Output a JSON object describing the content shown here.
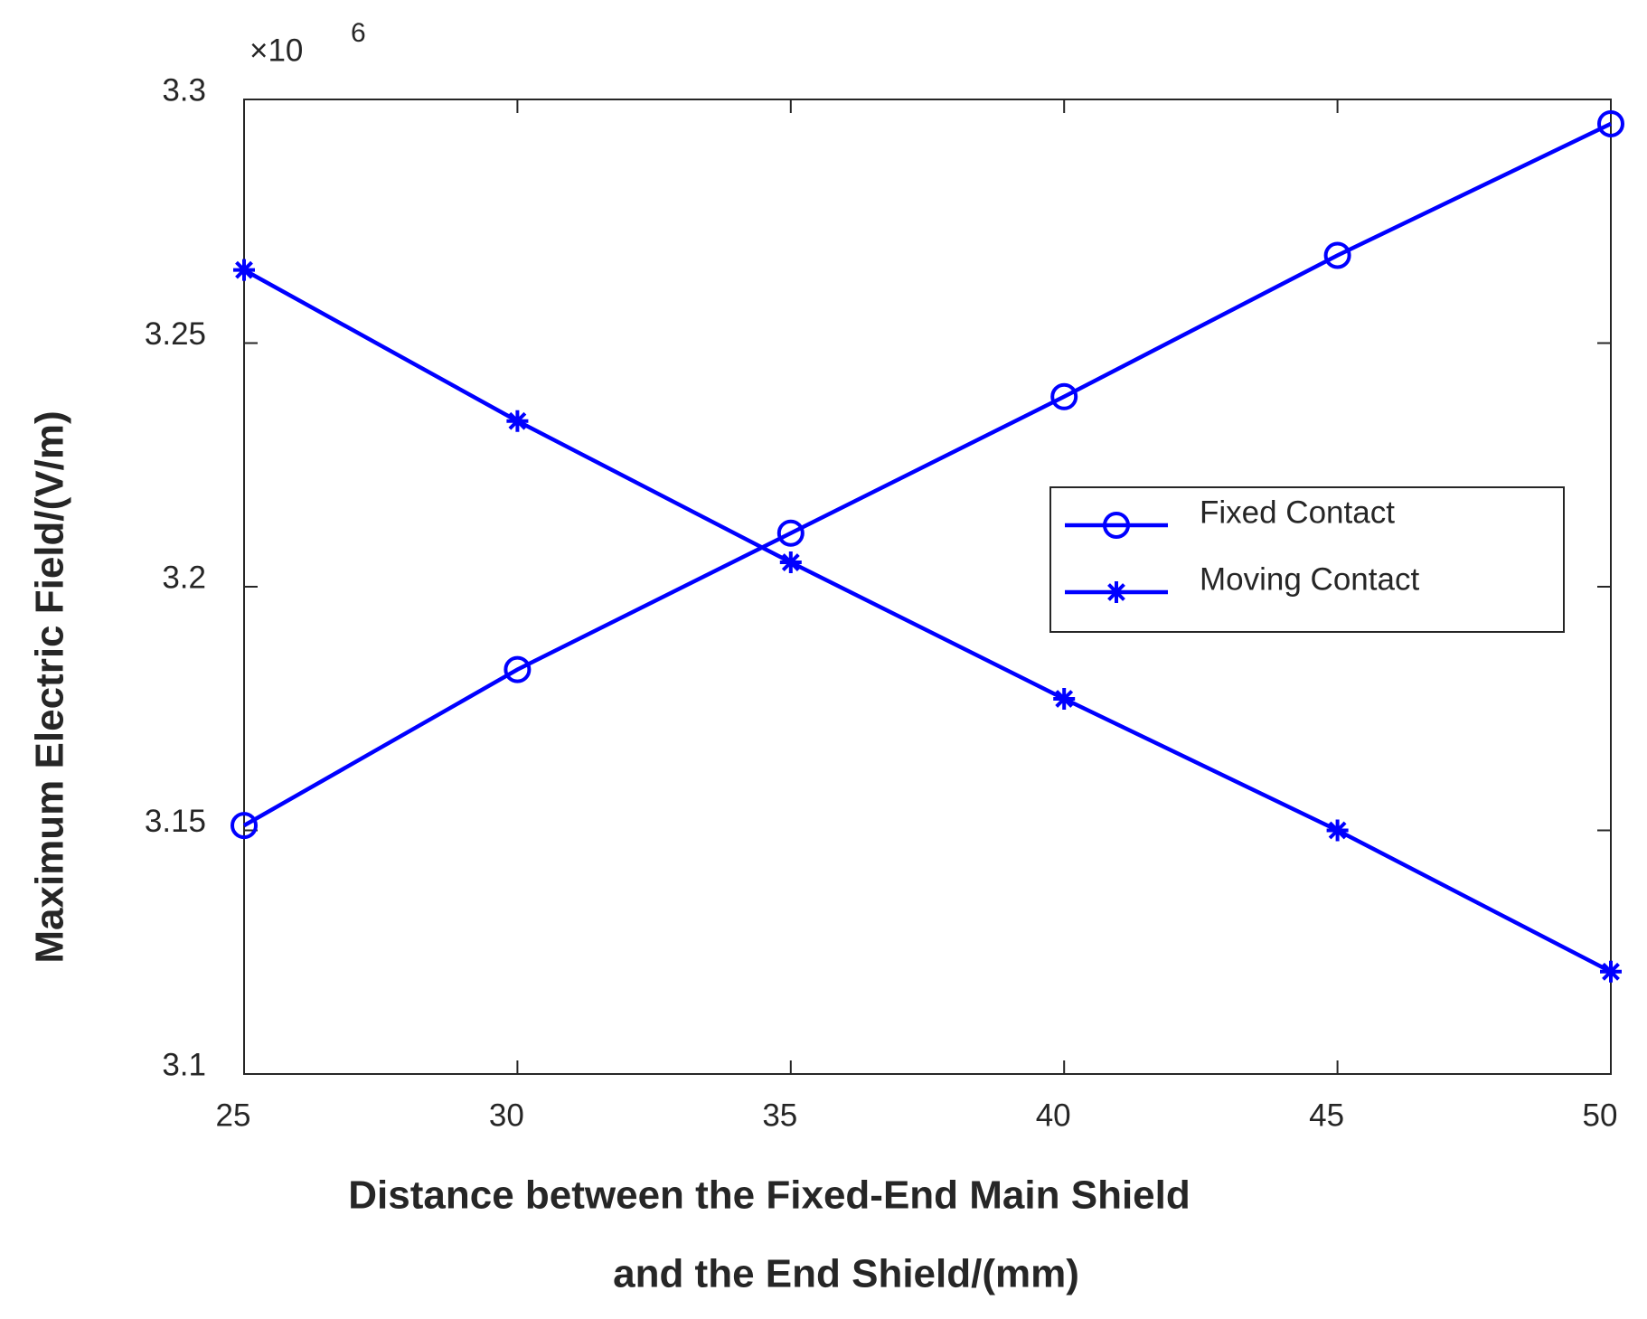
{
  "chart_data": {
    "type": "line",
    "xlabel": [
      "Distance between the Fixed-End Main Shield",
      "and the End Shield/(mm)"
    ],
    "ylabel": "Maximum Electric Field/(V/m)",
    "y_multiplier": "×10",
    "y_exponent": "6",
    "x": [
      25,
      30,
      35,
      40,
      45,
      50
    ],
    "series": [
      {
        "name": "Fixed Contact",
        "color": "#0000ff",
        "marker": "circle",
        "values": [
          3.151,
          3.183,
          3.211,
          3.239,
          3.268,
          3.295
        ]
      },
      {
        "name": "Moving Contact",
        "color": "#0000ff",
        "marker": "star",
        "values": [
          3.265,
          3.234,
          3.205,
          3.177,
          3.15,
          3.121
        ]
      }
    ],
    "xlim": [
      25,
      50
    ],
    "xticks": [
      25,
      30,
      35,
      40,
      45,
      50
    ],
    "ylim": [
      3.1,
      3.3
    ],
    "yticks": [
      3.1,
      3.15,
      3.2,
      3.25,
      3.3
    ],
    "grid": false,
    "legend": "right"
  }
}
